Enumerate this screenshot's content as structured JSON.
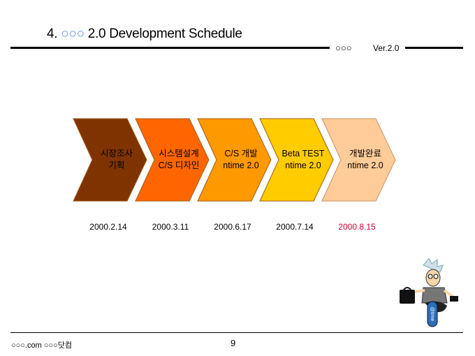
{
  "header": {
    "number": "4.",
    "circles": "○○○",
    "title_rest": "2.0 Development Schedule",
    "vendor": "○○○",
    "version": "Ver.2.0"
  },
  "steps": [
    {
      "line1": "시장조사",
      "line2": "기획",
      "date": "2000.2.14",
      "color": "#7f3300"
    },
    {
      "line1": "시스템설계",
      "line2": "C/S 디자인",
      "date": "2000.3.11",
      "color": "#ff6600"
    },
    {
      "line1": "C/S 개발",
      "line2": "ntime 2.0",
      "date": "2000.6.17",
      "color": "#ff9900"
    },
    {
      "line1": "Beta TEST",
      "line2": "ntime 2.0",
      "date": "2000.7.14",
      "color": "#ffcc00"
    },
    {
      "line1": "개발완료",
      "line2": "ntime 2.0",
      "date": "2000.8.15",
      "color": "#ffcc99"
    }
  ],
  "highlight_date_color": "#cc0033",
  "footer": {
    "company": "○○○.com ○○○닷컴",
    "page": "9"
  },
  "mascot": {
    "badge": "@time"
  }
}
